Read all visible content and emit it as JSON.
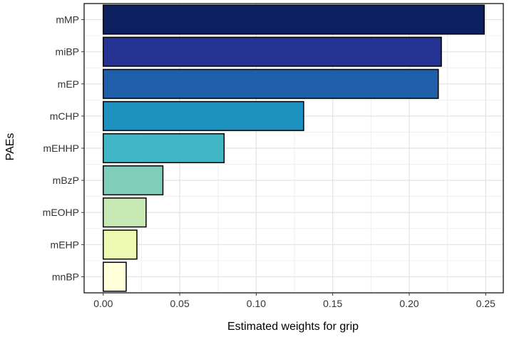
{
  "chart_data": {
    "type": "bar",
    "orientation": "horizontal",
    "title": "",
    "xlabel": "Estimated weights for grip",
    "ylabel": "PAEs",
    "xlim": [
      -0.0125,
      0.2615
    ],
    "xticks": [
      0.0,
      0.05,
      0.1,
      0.15,
      0.2,
      0.25
    ],
    "xtick_labels": [
      "0.00",
      "0.05",
      "0.10",
      "0.15",
      "0.20",
      "0.25"
    ],
    "grid": true,
    "legend": "none",
    "categories": [
      "mMP",
      "miBP",
      "mEP",
      "mCHP",
      "mEHHP",
      "mBzP",
      "mEOHP",
      "mEHP",
      "mnBP"
    ],
    "values": [
      0.249,
      0.221,
      0.219,
      0.131,
      0.079,
      0.039,
      0.028,
      0.022,
      0.015
    ],
    "colors": [
      "#0c1f5f",
      "#253494",
      "#1f5ea8",
      "#1d91c0",
      "#41b6c4",
      "#7fcdbb",
      "#c7e9b4",
      "#edf8b1",
      "#ffffd9"
    ]
  }
}
